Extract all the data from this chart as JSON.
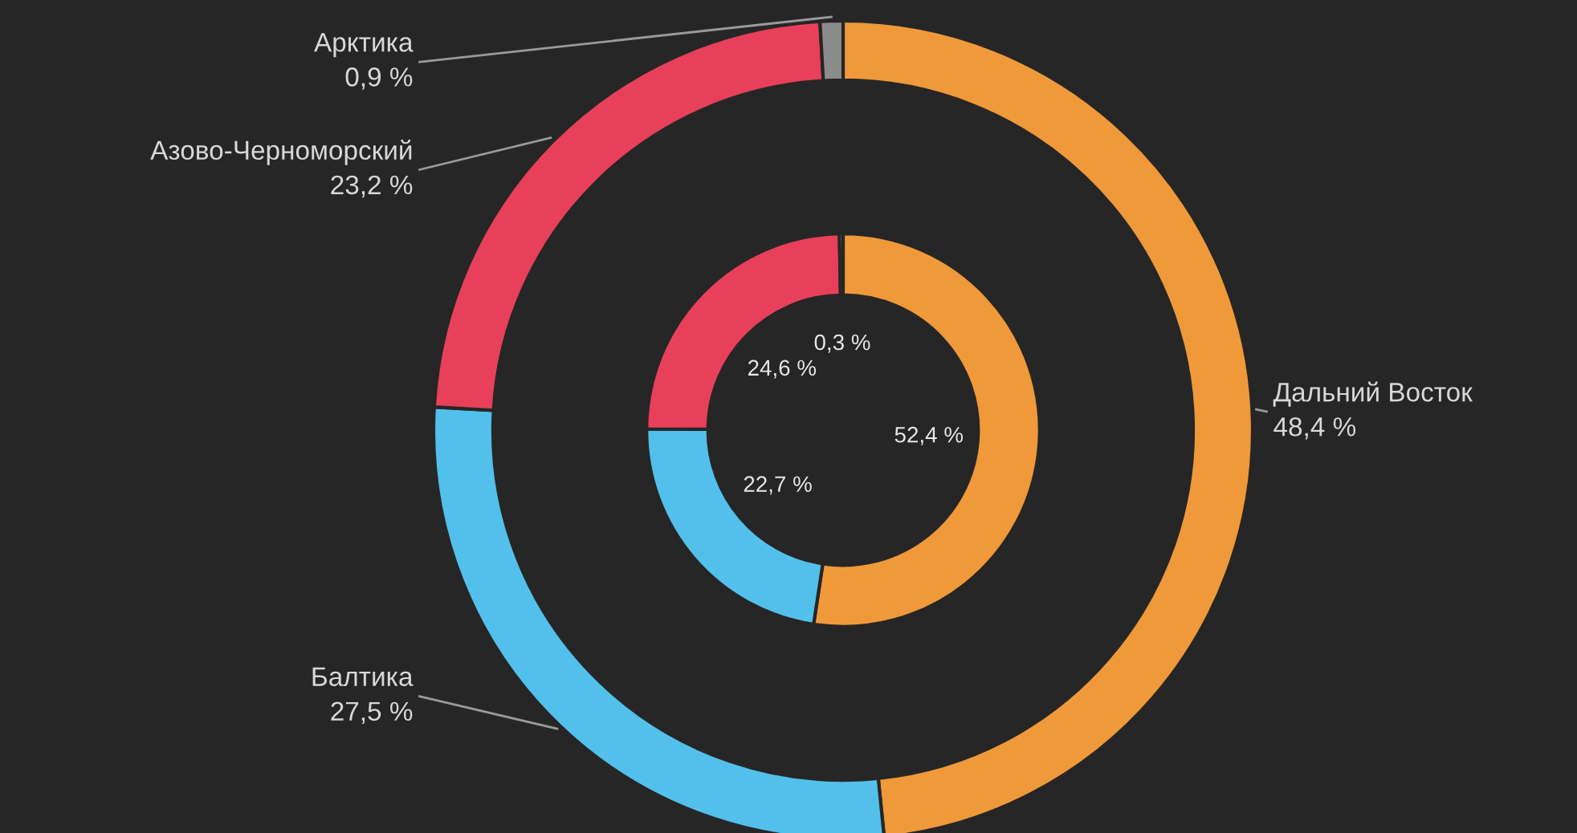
{
  "chart_data": {
    "type": "donut",
    "categories": [
      "Дальний Восток",
      "Балтика",
      "Азово-Черноморский",
      "Арктика"
    ],
    "series": [
      {
        "values": [
          48.4,
          27.5,
          23.2,
          0.9
        ],
        "colors": [
          "#f0993a",
          "#52c0ea",
          "#e8405a",
          "#8c8c8c"
        ],
        "value_labels": [
          "48,4 %",
          "27,5 %",
          "23,2 %",
          "0,9 %"
        ]
      },
      {
        "values": [
          52.4,
          22.7,
          24.6,
          0.3
        ],
        "colors": [
          "#f0993a",
          "#52c0ea",
          "#e8405a",
          "#8c8c8c"
        ],
        "value_labels": [
          "52,4 %",
          "22,7 %",
          "24,6 %",
          "0,3 %"
        ]
      }
    ]
  }
}
